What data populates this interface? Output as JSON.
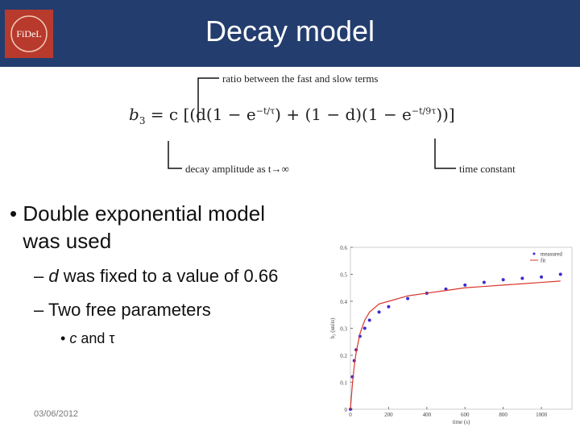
{
  "header": {
    "title": "Decay model",
    "logo_text": "FiDeL"
  },
  "equation": {
    "parts": [
      "b",
      "3",
      " = c [(d(1 − e",
      "−t/τ",
      ") + (1 − d)(1 − e",
      "−t/9τ",
      "))]"
    ],
    "annotations": [
      "ratio between the fast and slow terms",
      "decay amplitude as t→∞",
      "time constant"
    ]
  },
  "bullets": [
    {
      "text": "Double exponential model was used"
    },
    {
      "italic": "d",
      "text": " was fixed to a value of 0.66"
    },
    {
      "text": "Two free parameters"
    },
    {
      "italic": "c",
      "text": " and τ"
    }
  ],
  "footer": {
    "date": "03/06/2012"
  },
  "chart_data": {
    "type": "scatter-line",
    "xlabel": "time (s)",
    "ylabel": "b₃ (units)",
    "x": [
      0,
      10,
      20,
      30,
      50,
      75,
      100,
      150,
      200,
      300,
      400,
      500,
      600,
      700,
      800,
      900,
      1000,
      1100
    ],
    "series": [
      {
        "name": "measured",
        "color": "#3a2bd1",
        "style": "markers",
        "values": [
          0,
          0.12,
          0.18,
          0.22,
          0.27,
          0.3,
          0.33,
          0.36,
          0.38,
          0.41,
          0.43,
          0.445,
          0.46,
          0.47,
          0.48,
          0.485,
          0.49,
          0.5
        ]
      },
      {
        "name": "fit",
        "color": "#d9342b",
        "style": "line",
        "values": [
          0,
          0.09,
          0.16,
          0.21,
          0.28,
          0.33,
          0.36,
          0.39,
          0.4,
          0.42,
          0.43,
          0.44,
          0.45,
          0.455,
          0.46,
          0.465,
          0.47,
          0.475
        ]
      }
    ],
    "xlim": [
      0,
      1160
    ],
    "ylim": [
      0,
      0.6
    ],
    "xticks": [
      0,
      200,
      400,
      600,
      800,
      1000
    ],
    "yticks": [
      0,
      0.1,
      0.2,
      0.3,
      0.4,
      0.5,
      0.6
    ],
    "legend": "upper right"
  }
}
